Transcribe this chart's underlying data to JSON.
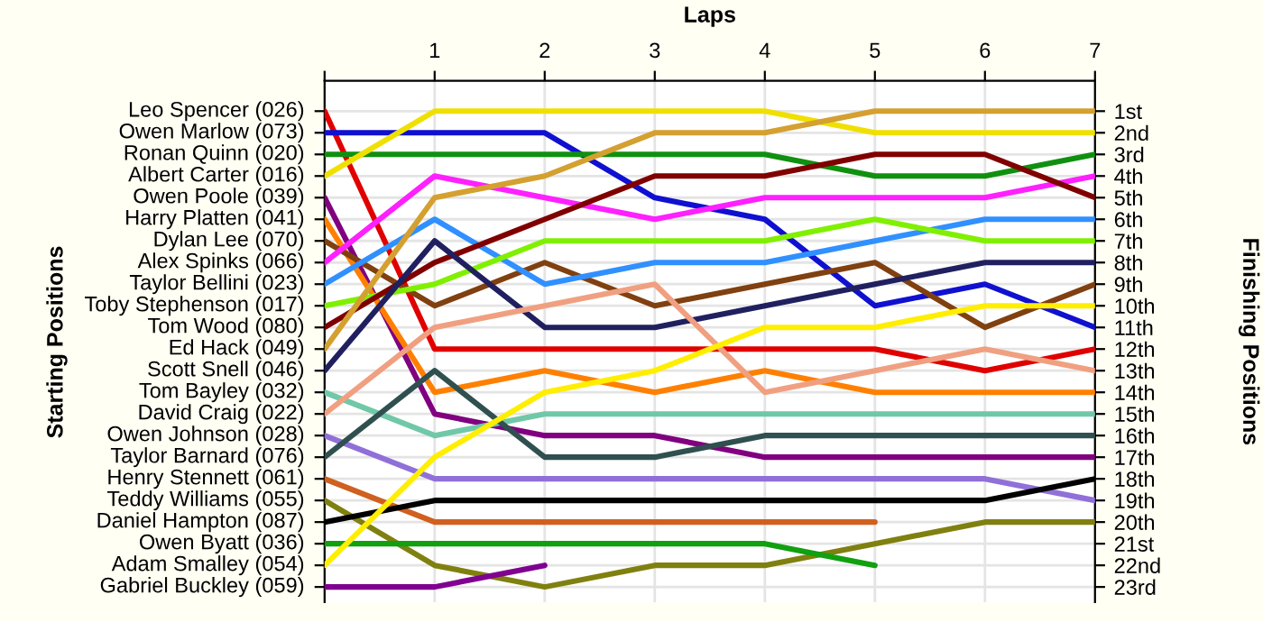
{
  "chart_data": {
    "type": "line",
    "xlabel": "Laps",
    "y2label": "Finishing Positions",
    "x": [
      0,
      1,
      2,
      3,
      4,
      5,
      6,
      7
    ],
    "xlim": [
      0,
      7
    ],
    "xticks": [
      {
        "value": 0,
        "label": null
      },
      1,
      2,
      3,
      4,
      5,
      6,
      7
    ],
    "ylim": [
      23.7,
      -0.4
    ],
    "yticks": [
      {
        "value": 1,
        "label": "1st"
      },
      {
        "value": 2,
        "label": "2nd"
      },
      {
        "value": 3,
        "label": "3rd"
      },
      {
        "value": 4,
        "label": "4th"
      },
      {
        "value": 5,
        "label": "5th"
      },
      {
        "value": 6,
        "label": "6th"
      },
      {
        "value": 7,
        "label": "7th"
      },
      {
        "value": 8,
        "label": "8th"
      },
      {
        "value": 9,
        "label": "9th"
      },
      {
        "value": 10,
        "label": "10th"
      },
      {
        "value": 11,
        "label": "11th"
      },
      {
        "value": 12,
        "label": "12th"
      },
      {
        "value": 13,
        "label": "13th"
      },
      {
        "value": 14,
        "label": "14th"
      },
      {
        "value": 15,
        "label": "15th"
      },
      {
        "value": 16,
        "label": "16th"
      },
      {
        "value": 17,
        "label": "17th"
      },
      {
        "value": 18,
        "label": "18th"
      },
      {
        "value": 19,
        "label": "19th"
      },
      {
        "value": 20,
        "label": "20th"
      },
      {
        "value": 21,
        "label": "21st"
      },
      {
        "value": 22,
        "label": "22nd"
      },
      {
        "value": 23,
        "label": "23rd"
      }
    ],
    "grid": true,
    "marker": "none",
    "line_style": "solid",
    "annotations": [
      "Starting Positions",
      "Leo Spencer (026)",
      "Owen Marlow (073)",
      "Ronan Quinn (020)",
      "Albert Carter (016)",
      "Owen Poole (039)",
      "Harry Platten (041)",
      "Dylan Lee (070)",
      "Alex Spinks (066)",
      "Taylor Bellini (023)",
      "Toby Stephenson (017)",
      "Tom Wood (080)",
      "Ed Hack (049)",
      "Scott Snell (046)",
      "Tom Bayley (032)",
      "David Craig (022)",
      "Owen Johnson (028)",
      "Taylor Barnard (076)",
      "Henry Stennett (061)",
      "Teddy Williams (055)",
      "Daniel Hampton (087)",
      "Owen Byatt (036)",
      "Adam Smalley (054)",
      "Gabriel Buckley (059)"
    ],
    "series": [
      {
        "color": "#e00000",
        "values": [
          1,
          12,
          12,
          12,
          12,
          12,
          13,
          12
        ]
      },
      {
        "color": "#1010d0",
        "values": [
          2,
          2,
          2,
          5,
          6,
          10,
          9,
          11
        ]
      },
      {
        "color": "#109010",
        "values": [
          3,
          3,
          3,
          3,
          3,
          4,
          4,
          3
        ]
      },
      {
        "color": "#f0e000",
        "values": [
          4,
          1,
          1,
          1,
          1,
          2,
          2,
          2
        ]
      },
      {
        "color": "#800080",
        "values": [
          5,
          15,
          16,
          16,
          17,
          17,
          17,
          17
        ]
      },
      {
        "color": "#ff8000",
        "values": [
          6,
          14,
          13,
          14,
          13,
          14,
          14,
          14
        ]
      },
      {
        "color": "#804010",
        "values": [
          7,
          10,
          8,
          10,
          9,
          8,
          11,
          9
        ]
      },
      {
        "color": "#ff20ff",
        "values": [
          8,
          4,
          5,
          6,
          5,
          5,
          5,
          4
        ]
      },
      {
        "color": "#3090ff",
        "values": [
          9,
          6,
          9,
          8,
          8,
          7,
          6,
          6
        ]
      },
      {
        "color": "#80f000",
        "values": [
          10,
          9,
          7,
          7,
          7,
          6,
          7,
          7
        ]
      },
      {
        "color": "#800000",
        "values": [
          11,
          8,
          6,
          4,
          4,
          3,
          3,
          5
        ]
      },
      {
        "color": "#d4a030",
        "values": [
          12,
          5,
          4,
          2,
          2,
          1,
          1,
          1
        ]
      },
      {
        "color": "#202060",
        "values": [
          13,
          7,
          11,
          11,
          10,
          9,
          8,
          8
        ]
      },
      {
        "color": "#70c8a8",
        "values": [
          14,
          16,
          15,
          15,
          15,
          15,
          15,
          15
        ]
      },
      {
        "color": "#f0a080",
        "values": [
          15,
          11,
          10,
          9,
          14,
          13,
          12,
          13
        ]
      },
      {
        "color": "#9070d8",
        "values": [
          16,
          18,
          18,
          18,
          18,
          18,
          18,
          19
        ]
      },
      {
        "color": "#305050",
        "values": [
          17,
          13,
          17,
          17,
          16,
          16,
          16,
          16
        ]
      },
      {
        "color": "#d06020",
        "values": [
          18,
          20,
          20,
          20,
          20,
          20,
          null,
          null
        ]
      },
      {
        "color": "#808010",
        "values": [
          19,
          22,
          23,
          22,
          22,
          21,
          20,
          20
        ]
      },
      {
        "color": "#000000",
        "values": [
          20,
          19,
          19,
          19,
          19,
          19,
          19,
          18
        ]
      },
      {
        "color": "#10a010",
        "values": [
          21,
          21,
          21,
          21,
          21,
          22,
          null,
          null
        ]
      },
      {
        "color": "#ffee00",
        "values": [
          22,
          17,
          14,
          13,
          11,
          11,
          10,
          10
        ]
      },
      {
        "color": "#800090",
        "values": [
          23,
          23,
          22,
          null,
          null,
          null,
          null,
          null
        ]
      }
    ]
  }
}
